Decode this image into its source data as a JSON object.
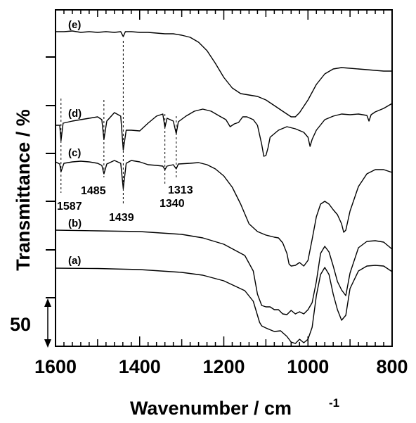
{
  "chart_data": {
    "type": "line",
    "xlabel": "Wavenumber / cm",
    "xlabel_superscript": "-1",
    "ylabel": "Transmittance / %",
    "xlim": [
      1600,
      800
    ],
    "x_reversed": true,
    "x_ticks": [
      "1600",
      "1400",
      "1200",
      "1000",
      "800"
    ],
    "scale_bar_label": "50",
    "grid": false,
    "legend": "none",
    "series": [
      {
        "name": "(a)",
        "points": [
          [
            1600,
            381
          ],
          [
            1500,
            381.5
          ],
          [
            1400,
            383
          ],
          [
            1300,
            387
          ],
          [
            1250,
            391
          ],
          [
            1200,
            399
          ],
          [
            1150,
            413
          ],
          [
            1130,
            428
          ],
          [
            1120,
            448
          ],
          [
            1115,
            458
          ],
          [
            1110,
            463
          ],
          [
            1100,
            466
          ],
          [
            1080,
            471
          ],
          [
            1065,
            470
          ],
          [
            1050,
            478
          ],
          [
            1040,
            486
          ],
          [
            1030,
            488
          ],
          [
            1020,
            482
          ],
          [
            1010,
            487
          ],
          [
            1000,
            482
          ],
          [
            990,
            465
          ],
          [
            980,
            420
          ],
          [
            970,
            390
          ],
          [
            960,
            380
          ],
          [
            950,
            390
          ],
          [
            940,
            418
          ],
          [
            930,
            440
          ],
          [
            920,
            455
          ],
          [
            910,
            448
          ],
          [
            900,
            410
          ],
          [
            880,
            385
          ],
          [
            860,
            378
          ],
          [
            840,
            377
          ],
          [
            820,
            378
          ],
          [
            800,
            386
          ]
        ]
      },
      {
        "name": "(b)",
        "points": [
          [
            1600,
            327
          ],
          [
            1500,
            328
          ],
          [
            1400,
            329
          ],
          [
            1300,
            333
          ],
          [
            1250,
            338
          ],
          [
            1200,
            347
          ],
          [
            1150,
            363
          ],
          [
            1130,
            385
          ],
          [
            1120,
            418
          ],
          [
            1110,
            434
          ],
          [
            1100,
            436
          ],
          [
            1090,
            436
          ],
          [
            1080,
            440
          ],
          [
            1070,
            440
          ],
          [
            1060,
            446
          ],
          [
            1050,
            447
          ],
          [
            1040,
            441
          ],
          [
            1030,
            446
          ],
          [
            1020,
            443
          ],
          [
            1010,
            446
          ],
          [
            1000,
            440
          ],
          [
            990,
            430
          ],
          [
            980,
            400
          ],
          [
            970,
            360
          ],
          [
            960,
            350
          ],
          [
            950,
            358
          ],
          [
            940,
            378
          ],
          [
            930,
            400
          ],
          [
            920,
            412
          ],
          [
            910,
            420
          ],
          [
            900,
            388
          ],
          [
            880,
            352
          ],
          [
            860,
            343
          ],
          [
            840,
            342
          ],
          [
            820,
            344
          ],
          [
            800,
            354
          ]
        ]
      },
      {
        "name": "(c)",
        "points": [
          [
            1600,
            230
          ],
          [
            1590,
            233
          ],
          [
            1587,
            244
          ],
          [
            1580,
            232
          ],
          [
            1560,
            230
          ],
          [
            1540,
            229
          ],
          [
            1520,
            230
          ],
          [
            1500,
            232
          ],
          [
            1490,
            235
          ],
          [
            1485,
            247
          ],
          [
            1478,
            233
          ],
          [
            1460,
            228
          ],
          [
            1445,
            232
          ],
          [
            1439,
            268
          ],
          [
            1432,
            232
          ],
          [
            1420,
            228
          ],
          [
            1400,
            230
          ],
          [
            1380,
            234
          ],
          [
            1360,
            235
          ],
          [
            1345,
            236
          ],
          [
            1340,
            241
          ],
          [
            1335,
            236
          ],
          [
            1320,
            234
          ],
          [
            1313,
            240
          ],
          [
            1308,
            233
          ],
          [
            1280,
            232
          ],
          [
            1260,
            231
          ],
          [
            1240,
            234
          ],
          [
            1220,
            240
          ],
          [
            1200,
            250
          ],
          [
            1180,
            266
          ],
          [
            1160,
            290
          ],
          [
            1140,
            318
          ],
          [
            1120,
            329
          ],
          [
            1100,
            334
          ],
          [
            1080,
            337
          ],
          [
            1070,
            338
          ],
          [
            1060,
            345
          ],
          [
            1050,
            360
          ],
          [
            1045,
            375
          ],
          [
            1040,
            378
          ],
          [
            1030,
            377
          ],
          [
            1020,
            373
          ],
          [
            1010,
            378
          ],
          [
            1000,
            370
          ],
          [
            990,
            340
          ],
          [
            980,
            308
          ],
          [
            970,
            290
          ],
          [
            960,
            286
          ],
          [
            950,
            290
          ],
          [
            940,
            298
          ],
          [
            930,
            305
          ],
          [
            920,
            318
          ],
          [
            915,
            330
          ],
          [
            910,
            327
          ],
          [
            900,
            300
          ],
          [
            880,
            265
          ],
          [
            860,
            247
          ],
          [
            840,
            241
          ],
          [
            820,
            241
          ],
          [
            800,
            245
          ]
        ]
      },
      {
        "name": "(d)",
        "points": [
          [
            1600,
            178
          ],
          [
            1590,
            178
          ],
          [
            1587,
            200
          ],
          [
            1582,
            175
          ],
          [
            1560,
            172
          ],
          [
            1520,
            168
          ],
          [
            1500,
            166
          ],
          [
            1490,
            170
          ],
          [
            1485,
            198
          ],
          [
            1478,
            172
          ],
          [
            1460,
            160
          ],
          [
            1445,
            165
          ],
          [
            1439,
            213
          ],
          [
            1432,
            185
          ],
          [
            1420,
            185
          ],
          [
            1400,
            186
          ],
          [
            1380,
            175
          ],
          [
            1360,
            165
          ],
          [
            1345,
            162
          ],
          [
            1340,
            181
          ],
          [
            1335,
            168
          ],
          [
            1320,
            172
          ],
          [
            1313,
            190
          ],
          [
            1308,
            173
          ],
          [
            1290,
            165
          ],
          [
            1270,
            158
          ],
          [
            1250,
            155
          ],
          [
            1230,
            158
          ],
          [
            1210,
            165
          ],
          [
            1195,
            170
          ],
          [
            1185,
            180
          ],
          [
            1175,
            176
          ],
          [
            1165,
            174
          ],
          [
            1155,
            166
          ],
          [
            1145,
            166
          ],
          [
            1130,
            170
          ],
          [
            1120,
            178
          ],
          [
            1110,
            205
          ],
          [
            1105,
            222
          ],
          [
            1100,
            221
          ],
          [
            1095,
            210
          ],
          [
            1090,
            195
          ],
          [
            1070,
            185
          ],
          [
            1050,
            180
          ],
          [
            1030,
            183
          ],
          [
            1010,
            188
          ],
          [
            1000,
            195
          ],
          [
            995,
            208
          ],
          [
            990,
            198
          ],
          [
            980,
            185
          ],
          [
            960,
            170
          ],
          [
            940,
            165
          ],
          [
            920,
            162
          ],
          [
            900,
            163
          ],
          [
            880,
            162
          ],
          [
            860,
            164
          ],
          [
            855,
            172
          ],
          [
            850,
            163
          ],
          [
            840,
            159
          ],
          [
            820,
            154
          ],
          [
            800,
            147
          ]
        ]
      },
      {
        "name": "(e)",
        "points": [
          [
            1600,
            45
          ],
          [
            1580,
            45
          ],
          [
            1560,
            44
          ],
          [
            1540,
            46
          ],
          [
            1520,
            45
          ],
          [
            1500,
            46
          ],
          [
            1480,
            45
          ],
          [
            1460,
            46
          ],
          [
            1445,
            45
          ],
          [
            1439,
            52
          ],
          [
            1434,
            45
          ],
          [
            1420,
            45
          ],
          [
            1400,
            46
          ],
          [
            1380,
            46
          ],
          [
            1360,
            47
          ],
          [
            1340,
            48
          ],
          [
            1320,
            48
          ],
          [
            1300,
            50
          ],
          [
            1280,
            53
          ],
          [
            1260,
            60
          ],
          [
            1240,
            72
          ],
          [
            1220,
            90
          ],
          [
            1200,
            110
          ],
          [
            1180,
            125
          ],
          [
            1160,
            133
          ],
          [
            1140,
            135
          ],
          [
            1120,
            137
          ],
          [
            1100,
            142
          ],
          [
            1080,
            150
          ],
          [
            1060,
            158
          ],
          [
            1050,
            162
          ],
          [
            1040,
            166
          ],
          [
            1030,
            166
          ],
          [
            1020,
            160
          ],
          [
            1000,
            142
          ],
          [
            980,
            120
          ],
          [
            960,
            105
          ],
          [
            940,
            98
          ],
          [
            920,
            96
          ],
          [
            900,
            97
          ],
          [
            880,
            98
          ],
          [
            860,
            99
          ],
          [
            840,
            100
          ],
          [
            820,
            101
          ],
          [
            800,
            101
          ]
        ]
      }
    ],
    "peak_markers": [
      {
        "x": 1587,
        "label": "1587"
      },
      {
        "x": 1485,
        "label": "1485"
      },
      {
        "x": 1439,
        "label": "1439"
      },
      {
        "x": 1340,
        "label": "1340"
      },
      {
        "x": 1313,
        "label": "1313"
      }
    ]
  }
}
